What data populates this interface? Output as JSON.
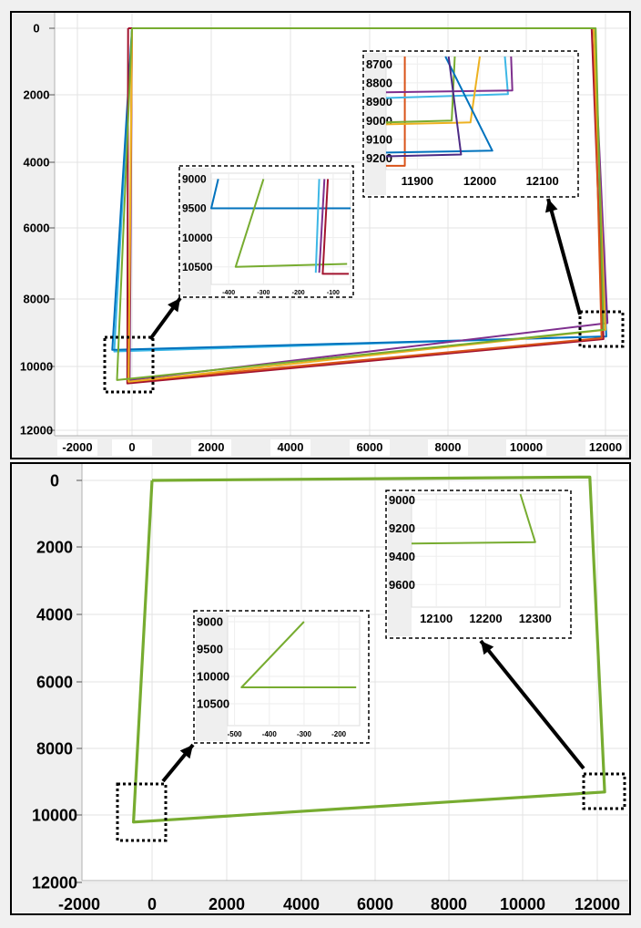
{
  "chart_data": [
    {
      "type": "line",
      "title": "",
      "xlabel": "",
      "ylabel": "",
      "xlim": [
        -2000,
        12000
      ],
      "ylim": [
        12000,
        0
      ],
      "x_ticks": [
        "-2000",
        "0",
        "2000",
        "4000",
        "6000",
        "8000",
        "10000",
        "12000"
      ],
      "y_ticks": [
        "0",
        "2000",
        "4000",
        "6000",
        "8000",
        "10000",
        "12000"
      ],
      "grid": true,
      "series": [
        {
          "color": "#3db7e6",
          "points": [
            [
              0,
              0
            ],
            [
              11700,
              0
            ],
            [
              11930,
              9200
            ],
            [
              -450,
              9650
            ],
            [
              0,
              0
            ]
          ]
        },
        {
          "color": "#0072bd",
          "points": [
            [
              0,
              0
            ],
            [
              11700,
              0
            ],
            [
              12020,
              9200
            ],
            [
              -500,
              9600
            ],
            [
              0,
              0
            ]
          ]
        },
        {
          "color": "#7e2f8e",
          "points": [
            [
              0,
              0
            ],
            [
              11700,
              0
            ],
            [
              12050,
              8800
            ],
            [
              -60,
              10500
            ],
            [
              0,
              0
            ]
          ]
        },
        {
          "color": "#a2142f",
          "points": [
            [
              -100,
              0
            ],
            [
              11650,
              0
            ],
            [
              11950,
              9280
            ],
            [
              -120,
              10600
            ],
            [
              -100,
              0
            ]
          ]
        },
        {
          "color": "#d95319",
          "points": [
            [
              0,
              0
            ],
            [
              11700,
              0
            ],
            [
              11900,
              9250
            ],
            [
              -80,
              10550
            ],
            [
              0,
              0
            ]
          ]
        },
        {
          "color": "#edb120",
          "points": [
            [
              0,
              0
            ],
            [
              11700,
              0
            ],
            [
              12000,
              9000
            ],
            [
              -90,
              10550
            ],
            [
              0,
              0
            ]
          ]
        },
        {
          "color": "#77ac30",
          "points": [
            [
              0,
              0
            ],
            [
              11750,
              0
            ],
            [
              11950,
              9000
            ],
            [
              -380,
              10500
            ],
            [
              0,
              0
            ]
          ]
        }
      ],
      "insets": [
        {
          "xlim": [
            -450,
            -50
          ],
          "ylim": [
            10800,
            8900
          ],
          "x_ticks": [
            "-400",
            "-300",
            "-200",
            "-100"
          ],
          "y_ticks": [
            "9000",
            "9500",
            "10000",
            "10500"
          ],
          "series": [
            {
              "color": "#0072bd",
              "points": [
                [
                  -430,
                  9000
                ],
                [
                  -450,
                  9500
                ],
                [
                  -50,
                  9500
                ]
              ]
            },
            {
              "color": "#77ac30",
              "points": [
                [
                  -300,
                  9000
                ],
                [
                  -380,
                  10500
                ],
                [
                  -60,
                  10450
                ]
              ]
            },
            {
              "color": "#7e2f8e",
              "points": [
                [
                  -125,
                  9000
                ],
                [
                  -140,
                  10600
                ]
              ]
            },
            {
              "color": "#a2142f",
              "points": [
                [
                  -115,
                  9000
                ],
                [
                  -130,
                  10620
                ],
                [
                  -55,
                  10620
                ]
              ]
            },
            {
              "color": "#3db7e6",
              "points": [
                [
                  -140,
                  9000
                ],
                [
                  -150,
                  10600
                ]
              ]
            }
          ]
        },
        {
          "xlim": [
            11850,
            12150
          ],
          "ylim": [
            9260,
            8660
          ],
          "x_ticks": [
            "11900",
            "12000",
            "12100"
          ],
          "y_ticks": [
            "8700",
            "8800",
            "8900",
            "9000",
            "9100",
            "9200"
          ],
          "series": [
            {
              "color": "#d95319",
              "points": [
                [
                  11880,
                  8660
                ],
                [
                  11880,
                  9240
                ],
                [
                  11850,
                  9240
                ]
              ]
            },
            {
              "color": "#3db7e6",
              "points": [
                [
                  12040,
                  8660
                ],
                [
                  12045,
                  8860
                ],
                [
                  11850,
                  8880
                ]
              ]
            },
            {
              "color": "#7e2f8e",
              "points": [
                [
                  12050,
                  8660
                ],
                [
                  12052,
                  8840
                ],
                [
                  11850,
                  8850
                ]
              ]
            },
            {
              "color": "#edb120",
              "points": [
                [
                  12000,
                  8660
                ],
                [
                  11985,
                  9010
                ],
                [
                  11850,
                  9020
                ]
              ]
            },
            {
              "color": "#77ac30",
              "points": [
                [
                  11960,
                  8660
                ],
                [
                  11955,
                  9000
                ],
                [
                  11850,
                  9010
                ]
              ]
            },
            {
              "color": "#0072bd",
              "points": [
                [
                  11945,
                  8660
                ],
                [
                  12020,
                  9160
                ],
                [
                  11850,
                  9170
                ]
              ]
            },
            {
              "color": "#4c2a85",
              "points": [
                [
                  11950,
                  8660
                ],
                [
                  11970,
                  9180
                ],
                [
                  11850,
                  9190
                ]
              ]
            }
          ]
        }
      ]
    },
    {
      "type": "line",
      "title": "",
      "xlabel": "",
      "ylabel": "",
      "xlim": [
        -2000,
        12500
      ],
      "ylim": [
        12000,
        0
      ],
      "x_ticks": [
        "-2000",
        "0",
        "2000",
        "4000",
        "6000",
        "8000",
        "10000",
        "12000"
      ],
      "y_ticks": [
        "0",
        "2000",
        "4000",
        "6000",
        "8000",
        "10000",
        "12000"
      ],
      "grid": true,
      "series": [
        {
          "color": "#77ac30",
          "points": [
            [
              0,
              0
            ],
            [
              11800,
              -100
            ],
            [
              12200,
              9300
            ],
            [
              -500,
              10200
            ],
            [
              0,
              0
            ]
          ]
        }
      ],
      "insets": [
        {
          "xlim": [
            -520,
            -140
          ],
          "ylim": [
            10900,
            8900
          ],
          "x_ticks": [
            "-500",
            "-400",
            "-300",
            "-200"
          ],
          "y_ticks": [
            "9000",
            "9500",
            "10000",
            "10500"
          ],
          "series": [
            {
              "color": "#77ac30",
              "points": [
                [
                  -300,
                  9000
                ],
                [
                  -480,
                  10200
                ],
                [
                  -150,
                  10200
                ]
              ]
            }
          ]
        },
        {
          "xlim": [
            12050,
            12350
          ],
          "ylim": [
            9760,
            8960
          ],
          "x_ticks": [
            "12100",
            "12200",
            "12300"
          ],
          "y_ticks": [
            "9000",
            "9200",
            "9400",
            "9600"
          ],
          "series": [
            {
              "color": "#77ac30",
              "points": [
                [
                  12270,
                  8960
                ],
                [
                  12300,
                  9300
                ],
                [
                  12050,
                  9310
                ]
              ]
            }
          ]
        }
      ]
    }
  ]
}
